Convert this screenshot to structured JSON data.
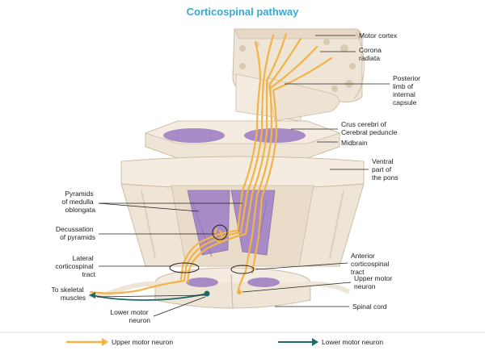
{
  "title": "Corticospinal pathway",
  "labels": {
    "motor_cortex": "Motor cortex",
    "corona_radiata": [
      "Corona",
      "radiata"
    ],
    "posterior_limb": [
      "Posterior",
      "limb of",
      "internal",
      "capsule"
    ],
    "crus_cerebri": [
      "Crus cerebri of",
      "Cerebral peduncle"
    ],
    "midbrain": "Midbrain",
    "ventral_pons": [
      "Ventral",
      "part of",
      "the pons"
    ],
    "pyramids": [
      "Pyramids",
      "of medulla",
      "oblongata"
    ],
    "decussation": [
      "Decussation",
      "of pyramids"
    ],
    "lateral_tract": [
      "Lateral",
      "corticospinal",
      "tract"
    ],
    "anterior_tract": [
      "Anterior",
      "corticospinal",
      "tract"
    ],
    "upper_motor_neuron": [
      "Upper motor",
      "neuron"
    ],
    "to_skeletal_muscles": [
      "To skeletal",
      "muscles"
    ],
    "lower_motor_neuron": [
      "Lower motor",
      "neuron"
    ],
    "spinal_cord": "Spinal cord"
  },
  "legend": {
    "upper": "Upper motor neuron",
    "lower": "Lower motor neuron"
  },
  "colors": {
    "title": "#39a9d4",
    "tract": "#f2b347",
    "tract_dark": "#d8912a",
    "lower_neuron": "#1f6b6a",
    "pyramid": "#a88bc6",
    "tissue": "#efe5d6",
    "tissue_shade": "#dccfbd"
  }
}
